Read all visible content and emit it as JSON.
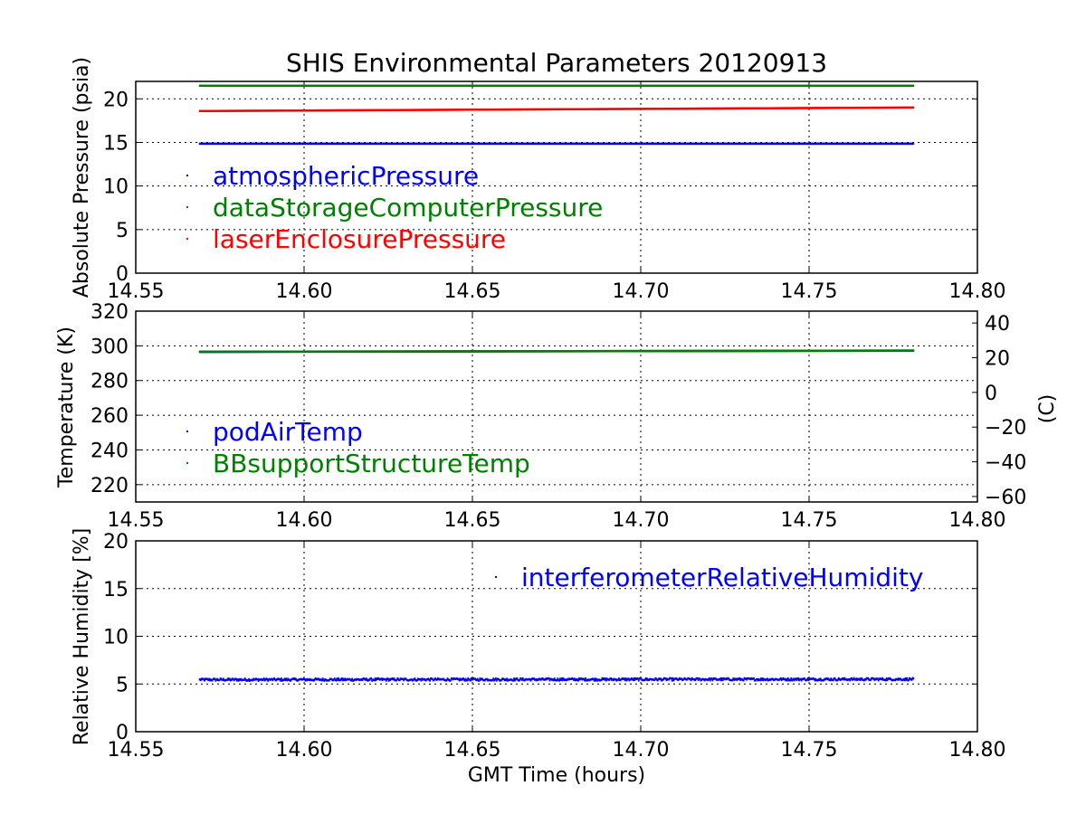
{
  "chart_data": [
    {
      "type": "scatter",
      "title": "SHIS Environmental Parameters 20120913",
      "xlabel": "",
      "ylabel": "Absolute Pressure (psia)",
      "xlim": [
        14.55,
        14.8
      ],
      "ylim": [
        0,
        22
      ],
      "xticks": [
        "14.55",
        "14.60",
        "14.65",
        "14.70",
        "14.75",
        "14.80"
      ],
      "yticks": [
        "0",
        "5",
        "10",
        "15",
        "20"
      ],
      "grid": true,
      "legend": "middle-left",
      "series": [
        {
          "name": "atmosphericPressure",
          "color": "#0000ff",
          "x_range": [
            14.569,
            14.781
          ],
          "start": 14.85,
          "end": 14.85
        },
        {
          "name": "dataStorageComputerPressure",
          "color": "#008000",
          "x_range": [
            14.569,
            14.781
          ],
          "start": 21.5,
          "end": 21.5
        },
        {
          "name": "laserEnclosurePressure",
          "color": "#ff0000",
          "x_range": [
            14.569,
            14.781
          ],
          "start": 18.6,
          "end": 19.0
        }
      ]
    },
    {
      "type": "scatter",
      "title": "",
      "xlabel": "",
      "ylabel": "Temperature (K)",
      "ylabel_right": "(C)",
      "xlim": [
        14.55,
        14.8
      ],
      "ylim": [
        210,
        320
      ],
      "ylim_right": [
        -63.15,
        46.85
      ],
      "xticks": [
        "14.55",
        "14.60",
        "14.65",
        "14.70",
        "14.75",
        "14.80"
      ],
      "yticks": [
        "220",
        "240",
        "260",
        "280",
        "300",
        "320"
      ],
      "yticks_right": [
        "−60",
        "−40",
        "−20",
        "0",
        "20",
        "40"
      ],
      "grid": true,
      "legend": "lower-left",
      "series": [
        {
          "name": "podAirTemp",
          "color": "#0000ff",
          "x_range": [
            14.569,
            14.781
          ],
          "start": 296.5,
          "end": 297.2
        },
        {
          "name": "BBsupportStructureTemp",
          "color": "#008000",
          "x_range": [
            14.569,
            14.781
          ],
          "start": 296.6,
          "end": 297.3
        }
      ]
    },
    {
      "type": "scatter",
      "title": "",
      "xlabel": "GMT Time (hours)",
      "ylabel": "Relative Humidity [%]",
      "xlim": [
        14.55,
        14.8
      ],
      "ylim": [
        0,
        20
      ],
      "xticks": [
        "14.55",
        "14.60",
        "14.65",
        "14.70",
        "14.75",
        "14.80"
      ],
      "yticks": [
        "0",
        "5",
        "10",
        "15",
        "20"
      ],
      "grid": true,
      "legend": "upper-right",
      "series": [
        {
          "name": "interferometerRelativeHumidity",
          "color": "#0000ff",
          "x_range": [
            14.569,
            14.781
          ],
          "start": 5.45,
          "end": 5.5,
          "noise": 0.12
        }
      ]
    }
  ]
}
